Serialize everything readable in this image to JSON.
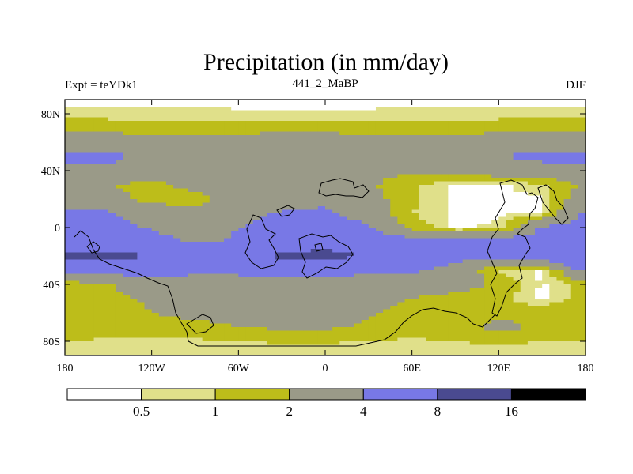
{
  "chart_data": {
    "type": "heatmap",
    "title": "Precipitation (in mm/day)",
    "left_label": "Expt = teYDk1",
    "center_label": "441_2_MaBP",
    "right_label": "DJF",
    "x_axis": {
      "range": [
        -180,
        180
      ],
      "ticks": [
        {
          "value": -180,
          "label": "180"
        },
        {
          "value": -120,
          "label": "120W"
        },
        {
          "value": -60,
          "label": "60W"
        },
        {
          "value": 0,
          "label": "0"
        },
        {
          "value": 60,
          "label": "60E"
        },
        {
          "value": 120,
          "label": "120E"
        },
        {
          "value": 180,
          "label": "180"
        }
      ]
    },
    "y_axis": {
      "range": [
        -90,
        90
      ],
      "ticks": [
        {
          "value": 80,
          "label": "80N"
        },
        {
          "value": 40,
          "label": "40N"
        },
        {
          "value": 0,
          "label": "0"
        },
        {
          "value": -40,
          "label": "40S"
        },
        {
          "value": -80,
          "label": "80S"
        }
      ]
    },
    "colorbar": {
      "levels": [
        0.5,
        1,
        2,
        4,
        8,
        16
      ],
      "level_labels": [
        "0.5",
        "1",
        "2",
        "4",
        "8",
        "16"
      ],
      "colors": [
        "#ffffff",
        "#e0e08a",
        "#bdbd1a",
        "#9a9a88",
        "#7878e6",
        "#4a4a90",
        "#000000"
      ]
    },
    "field": {
      "lat": [
        90,
        80,
        70,
        60,
        50,
        40,
        30,
        20,
        10,
        0,
        -10,
        -20,
        -30,
        -40,
        -50,
        -60,
        -70,
        -80,
        -90
      ],
      "lon": [
        -180,
        -150,
        -120,
        -90,
        -60,
        -30,
        0,
        30,
        60,
        90,
        120,
        150,
        180
      ],
      "units": "mm/day",
      "values": [
        [
          0.3,
          0.3,
          0.3,
          0.3,
          0.3,
          0.3,
          0.3,
          0.3,
          0.3,
          0.3,
          0.3,
          0.3,
          0.3
        ],
        [
          0.7,
          0.7,
          0.7,
          0.7,
          0.6,
          0.6,
          0.6,
          0.6,
          0.7,
          0.7,
          0.7,
          0.7,
          0.7
        ],
        [
          1.5,
          1.5,
          1.4,
          1.3,
          1.4,
          1.5,
          1.5,
          1.4,
          1.3,
          1.4,
          1.5,
          1.5,
          1.5
        ],
        [
          3.0,
          3.0,
          2.6,
          2.5,
          2.8,
          3.0,
          3.0,
          2.6,
          2.4,
          2.6,
          3.0,
          3.0,
          3.0
        ],
        [
          4.5,
          4.5,
          3.5,
          3.0,
          3.2,
          3.6,
          3.5,
          3.0,
          2.6,
          3.0,
          4.0,
          4.5,
          4.5
        ],
        [
          3.5,
          3.4,
          3.0,
          2.6,
          2.6,
          2.8,
          2.8,
          2.4,
          2.2,
          2.6,
          3.0,
          3.2,
          3.5
        ],
        [
          2.2,
          2.0,
          1.6,
          2.4,
          2.8,
          3.0,
          2.8,
          2.2,
          1.2,
          0.4,
          0.4,
          0.8,
          2.2
        ],
        [
          3.0,
          2.5,
          1.6,
          1.6,
          2.4,
          3.0,
          3.4,
          2.6,
          1.2,
          0.4,
          0.4,
          0.4,
          3.0
        ],
        [
          4.5,
          4.2,
          2.8,
          2.4,
          3.0,
          4.2,
          4.4,
          3.0,
          1.0,
          0.4,
          0.4,
          0.4,
          4.5
        ],
        [
          5.0,
          4.8,
          3.8,
          3.2,
          4.0,
          5.0,
          5.2,
          4.2,
          1.5,
          0.4,
          0.6,
          4.2,
          5.0
        ],
        [
          5.2,
          5.5,
          4.8,
          3.8,
          4.2,
          5.5,
          6.0,
          5.5,
          5.0,
          5.0,
          5.6,
          5.0,
          5.2
        ],
        [
          8.5,
          9.0,
          8.0,
          5.5,
          6.0,
          9.0,
          9.5,
          7.5,
          5.2,
          4.5,
          4.5,
          5.2,
          8.5
        ],
        [
          4.5,
          5.0,
          5.2,
          4.6,
          4.6,
          5.5,
          5.0,
          4.4,
          4.2,
          3.6,
          0.8,
          0.4,
          4.5
        ],
        [
          1.4,
          2.0,
          2.6,
          2.8,
          3.0,
          3.0,
          3.0,
          3.0,
          3.0,
          2.8,
          1.8,
          0.4,
          1.4
        ],
        [
          1.4,
          1.6,
          2.2,
          2.6,
          2.8,
          2.8,
          2.8,
          2.6,
          2.0,
          1.4,
          1.2,
          0.4,
          1.4
        ],
        [
          1.6,
          1.6,
          2.0,
          2.4,
          2.6,
          2.6,
          2.6,
          2.2,
          1.4,
          1.2,
          1.6,
          1.6,
          1.6
        ],
        [
          1.6,
          1.4,
          1.4,
          1.6,
          2.0,
          2.2,
          2.2,
          1.8,
          1.4,
          1.6,
          2.4,
          1.8,
          1.6
        ],
        [
          1.0,
          0.9,
          0.9,
          0.9,
          1.0,
          1.1,
          1.1,
          1.0,
          0.9,
          1.0,
          1.2,
          1.0,
          1.0
        ],
        [
          0.5,
          0.5,
          0.5,
          0.5,
          0.5,
          0.5,
          0.5,
          0.5,
          0.5,
          0.5,
          0.5,
          0.5,
          0.5
        ]
      ]
    }
  }
}
